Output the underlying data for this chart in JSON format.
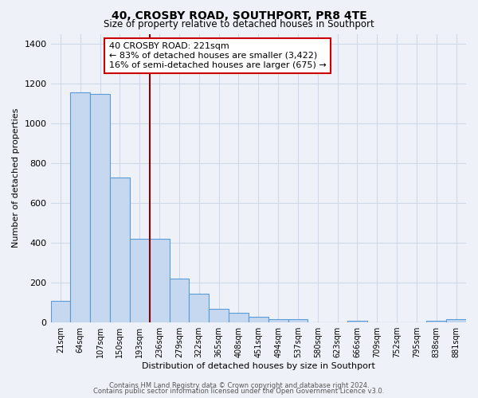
{
  "title": "40, CROSBY ROAD, SOUTHPORT, PR8 4TE",
  "subtitle": "Size of property relative to detached houses in Southport",
  "xlabel": "Distribution of detached houses by size in Southport",
  "ylabel": "Number of detached properties",
  "bar_labels": [
    "21sqm",
    "64sqm",
    "107sqm",
    "150sqm",
    "193sqm",
    "236sqm",
    "279sqm",
    "322sqm",
    "365sqm",
    "408sqm",
    "451sqm",
    "494sqm",
    "537sqm",
    "580sqm",
    "623sqm",
    "666sqm",
    "709sqm",
    "752sqm",
    "795sqm",
    "838sqm",
    "881sqm"
  ],
  "bar_values": [
    110,
    1155,
    1150,
    730,
    420,
    420,
    220,
    145,
    70,
    50,
    30,
    15,
    15,
    0,
    0,
    10,
    0,
    0,
    0,
    10,
    15
  ],
  "bar_color": "#c5d8f0",
  "bar_edge_color": "#5b9bd5",
  "ylim": [
    0,
    1450
  ],
  "yticks": [
    0,
    200,
    400,
    600,
    800,
    1000,
    1200,
    1400
  ],
  "vline_x": 4.5,
  "vline_color": "#8b0000",
  "annotation_box_edge": "#cc0000",
  "annotation_title": "40 CROSBY ROAD: 221sqm",
  "annotation_line1": "← 83% of detached houses are smaller (3,422)",
  "annotation_line2": "16% of semi-detached houses are larger (675) →",
  "footer_line1": "Contains HM Land Registry data © Crown copyright and database right 2024.",
  "footer_line2": "Contains public sector information licensed under the Open Government Licence v3.0.",
  "background_color": "#eef2f8",
  "plot_bg_color": "#eef2f8",
  "grid_color": "#d0d8e8"
}
